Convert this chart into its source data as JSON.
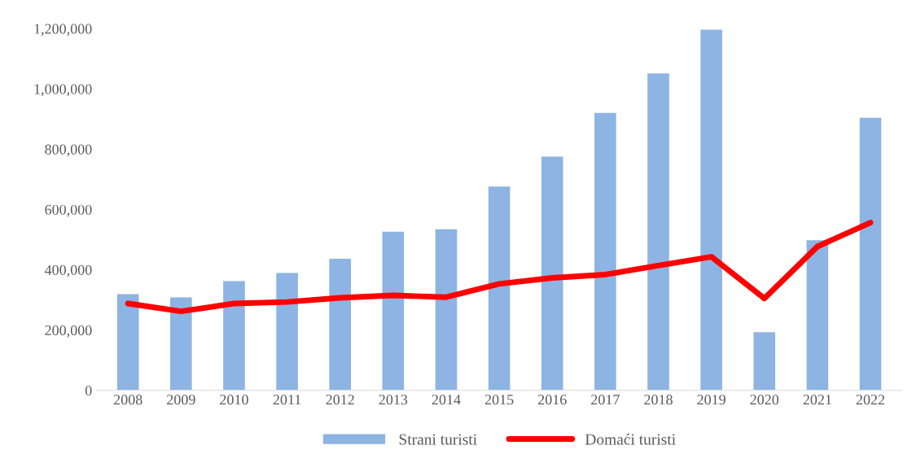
{
  "chart_data": {
    "type": "bar",
    "categories": [
      "2008",
      "2009",
      "2010",
      "2011",
      "2012",
      "2013",
      "2014",
      "2015",
      "2016",
      "2017",
      "2018",
      "2019",
      "2020",
      "2021",
      "2022"
    ],
    "series": [
      {
        "name": "Strani turisti",
        "color": "#8db4e2",
        "values": [
          321000,
          310000,
          364000,
          391000,
          438000,
          528000,
          536000,
          678000,
          777000,
          922000,
          1053000,
          1198000,
          195000,
          500000,
          906000
        ]
      },
      {
        "name": "Domaći turisti",
        "type": "line",
        "color": "#ff0000",
        "values": [
          288000,
          262000,
          288000,
          293000,
          307000,
          315000,
          309000,
          353000,
          373000,
          384000,
          414000,
          443000,
          305000,
          477000,
          556000
        ]
      }
    ],
    "ylim": [
      0,
      1200000
    ],
    "yticks": [
      {
        "value": 0,
        "label": "0"
      },
      {
        "value": 200000,
        "label": "200,000"
      },
      {
        "value": 400000,
        "label": "400,000"
      },
      {
        "value": 600000,
        "label": "600,000"
      },
      {
        "value": 800000,
        "label": "800,000"
      },
      {
        "value": 1000000,
        "label": "1,000,000"
      },
      {
        "value": 1200000,
        "label": "1,200,000"
      }
    ],
    "grid": false,
    "legend": "bottom",
    "marker": "none",
    "line_style": "solid"
  }
}
